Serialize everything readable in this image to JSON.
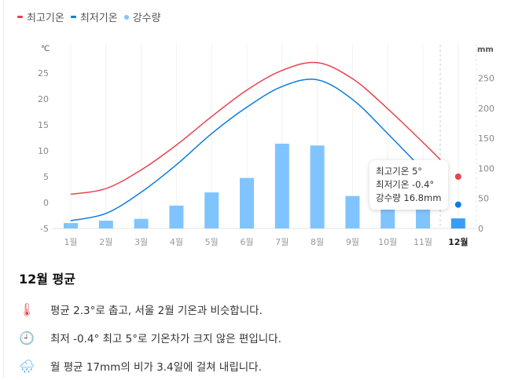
{
  "chart_data": {
    "type": "bar+line",
    "legend": [
      {
        "name": "최고기온",
        "color": "#e8434f"
      },
      {
        "name": "최저기온",
        "color": "#0a7de0"
      },
      {
        "name": "강수량",
        "color": "#80c4ff"
      }
    ],
    "legend_position": "top-left",
    "categories": [
      "1월",
      "2월",
      "3월",
      "4월",
      "5월",
      "6월",
      "7월",
      "8월",
      "9월",
      "10월",
      "11월",
      "12월"
    ],
    "series": [
      {
        "name": "최고기온",
        "axis": "left",
        "type": "line",
        "values": [
          1.6,
          2.7,
          6.3,
          11.1,
          16.6,
          21.7,
          25.5,
          27.0,
          23.9,
          18.1,
          11.6,
          5
        ]
      },
      {
        "name": "최저기온",
        "axis": "left",
        "type": "line",
        "values": [
          -3.5,
          -2.1,
          2.0,
          7.3,
          13.3,
          18.4,
          22.4,
          23.7,
          19.9,
          13.3,
          6.3,
          -0.4
        ]
      },
      {
        "name": "강수량",
        "axis": "right",
        "type": "bar",
        "values": [
          9,
          13,
          16,
          38,
          60,
          84,
          141,
          138,
          54,
          45,
          40,
          16.8
        ]
      }
    ],
    "left_axis": {
      "unit": "℃",
      "ticks": [
        "25",
        "20",
        "15",
        "10",
        "5",
        "0",
        "-5"
      ],
      "range": [
        -5,
        30
      ]
    },
    "right_axis": {
      "unit": "mm",
      "ticks": [
        "250",
        "200",
        "150",
        "100",
        "50",
        "0"
      ],
      "range": [
        0,
        300
      ]
    },
    "highlighted_category": "12월",
    "grid": "vertical",
    "tooltip": {
      "lines": [
        "최고기온 5°",
        "최저기온 -0.4°",
        "강수량 16.8mm"
      ]
    }
  },
  "summary": {
    "title": "12월 평균",
    "items": [
      {
        "icon": "thermometer-icon",
        "text": "평균 2.3°로 춥고, 서울 2월 기온과 비슷합니다."
      },
      {
        "icon": "clock-icon",
        "text": "최저 -0.4° 최고 5°로 기온차가 크지 않은 편입니다."
      },
      {
        "icon": "rain-cloud-icon",
        "text": "월 평균 17mm의 비가 3.4일에 걸쳐 내립니다."
      }
    ]
  }
}
